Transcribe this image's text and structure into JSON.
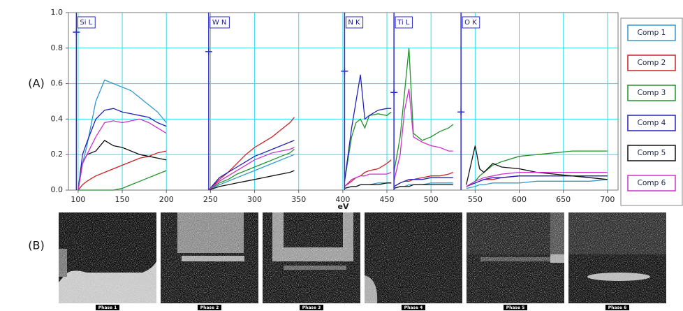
{
  "chart_data": {
    "type": "line",
    "x_label": "eV",
    "xlim": [
      89,
      712
    ],
    "ylim": [
      0,
      1
    ],
    "xticks": [
      100,
      150,
      200,
      250,
      300,
      350,
      400,
      450,
      500,
      550,
      600,
      650,
      700
    ],
    "yticks": [
      {
        "value": 0,
        "label": "0.0"
      },
      0.2,
      0.4,
      0.6,
      0.8,
      {
        "value": 1,
        "label": "1.0"
      }
    ],
    "grid": true,
    "grid_color": "#30e0e8",
    "legend": "right",
    "edges": [
      {
        "label": "Si L",
        "x": 98,
        "marker": 0.89
      },
      {
        "label": "W N",
        "x": 248,
        "marker": 0.78
      },
      {
        "label": "N K",
        "x": 402,
        "marker": 0.67
      },
      {
        "label": "Ti L",
        "x": 458,
        "marker": 0.55
      },
      {
        "label": "O K",
        "x": 534,
        "marker": 0.44
      }
    ],
    "edge_color": "#2a2ad0",
    "x": [
      100,
      105,
      110,
      120,
      130,
      140,
      150,
      160,
      170,
      180,
      190,
      200,
      null,
      248,
      260,
      270,
      280,
      290,
      300,
      310,
      320,
      330,
      340,
      345,
      null,
      402,
      410,
      415,
      420,
      425,
      430,
      440,
      450,
      455,
      null,
      458,
      465,
      470,
      475,
      480,
      490,
      500,
      510,
      520,
      525,
      null,
      540,
      550,
      555,
      560,
      570,
      580,
      600,
      620,
      640,
      660,
      680,
      700
    ],
    "series": [
      {
        "name": "Comp 1",
        "color": "#3399cc",
        "values": [
          0.02,
          0.15,
          0.25,
          0.5,
          0.62,
          0.6,
          0.58,
          0.56,
          0.52,
          0.48,
          0.44,
          0.38,
          null,
          0,
          0.03,
          0.05,
          0.07,
          0.09,
          0.11,
          0.13,
          0.15,
          0.17,
          0.19,
          0.2,
          null,
          0.01,
          0.02,
          0.02,
          0.03,
          0.03,
          0.03,
          0.04,
          0.04,
          0.04,
          null,
          0.01,
          0.02,
          0.02,
          0.03,
          0.03,
          0.03,
          0.04,
          0.04,
          0.04,
          0.04,
          null,
          0.01,
          0.02,
          0.03,
          0.03,
          0.04,
          0.04,
          0.04,
          0.05,
          0.05,
          0.05,
          0.05,
          0.06
        ]
      },
      {
        "name": "Comp 2",
        "color": "#cc2222",
        "values": [
          0,
          0.03,
          0.05,
          0.08,
          0.1,
          0.12,
          0.14,
          0.16,
          0.18,
          0.19,
          0.21,
          0.22,
          null,
          0,
          0.06,
          0.1,
          0.15,
          0.2,
          0.24,
          0.27,
          0.3,
          0.34,
          0.38,
          0.41,
          null,
          0.02,
          0.05,
          0.07,
          0.08,
          0.1,
          0.11,
          0.12,
          0.15,
          0.17,
          null,
          0.02,
          0.04,
          0.05,
          0.05,
          0.06,
          0.07,
          0.08,
          0.08,
          0.09,
          0.1,
          null,
          0.02,
          0.04,
          0.05,
          0.06,
          0.06,
          0.07,
          0.08,
          0.08,
          0.08,
          0.08,
          0.08,
          0.08
        ]
      },
      {
        "name": "Comp 3",
        "color": "#22922a",
        "values": [
          0,
          0,
          0,
          0,
          0,
          0,
          0.01,
          0.03,
          0.05,
          0.07,
          0.09,
          0.11,
          null,
          0,
          0.04,
          0.06,
          0.09,
          0.11,
          0.13,
          0.15,
          0.17,
          0.19,
          0.21,
          0.23,
          null,
          0.05,
          0.3,
          0.38,
          0.4,
          0.35,
          0.42,
          0.43,
          0.42,
          0.44,
          null,
          0.1,
          0.3,
          0.55,
          0.8,
          0.32,
          0.28,
          0.3,
          0.33,
          0.35,
          0.37,
          null,
          0.02,
          0.05,
          0.08,
          0.1,
          0.14,
          0.16,
          0.19,
          0.2,
          0.21,
          0.22,
          0.22,
          0.22
        ]
      },
      {
        "name": "Comp 4",
        "color": "#2222bb",
        "values": [
          0,
          0.2,
          0.27,
          0.4,
          0.45,
          0.46,
          0.44,
          0.43,
          0.42,
          0.41,
          0.38,
          0.36,
          null,
          0,
          0.07,
          0.1,
          0.13,
          0.16,
          0.19,
          0.21,
          0.23,
          0.25,
          0.27,
          0.28,
          null,
          0.05,
          0.35,
          0.5,
          0.65,
          0.4,
          0.42,
          0.45,
          0.46,
          0.46,
          null,
          0.02,
          0.04,
          0.05,
          0.06,
          0.06,
          0.06,
          0.07,
          0.07,
          0.07,
          0.07,
          null,
          0.02,
          0.04,
          0.05,
          0.06,
          0.07,
          0.07,
          0.08,
          0.08,
          0.08,
          0.08,
          0.08,
          0.08
        ]
      },
      {
        "name": "Comp 5",
        "color": "#111111",
        "values": [
          0,
          0.15,
          0.2,
          0.22,
          0.28,
          0.25,
          0.24,
          0.22,
          0.2,
          0.19,
          0.18,
          0.17,
          null,
          0,
          0.02,
          0.03,
          0.04,
          0.05,
          0.06,
          0.07,
          0.08,
          0.09,
          0.1,
          0.11,
          null,
          0.01,
          0.02,
          0.02,
          0.03,
          0.03,
          0.03,
          0.03,
          0.04,
          0.04,
          null,
          0.01,
          0.02,
          0.02,
          0.02,
          0.03,
          0.03,
          0.03,
          0.03,
          0.03,
          0.03,
          null,
          0.03,
          0.25,
          0.12,
          0.1,
          0.15,
          0.13,
          0.12,
          0.1,
          0.09,
          0.08,
          0.07,
          0.06
        ]
      },
      {
        "name": "Comp 6",
        "color": "#cc33cc",
        "values": [
          0,
          0.15,
          0.2,
          0.3,
          0.38,
          0.39,
          0.38,
          0.39,
          0.4,
          0.38,
          0.35,
          0.32,
          null,
          0,
          0.05,
          0.08,
          0.11,
          0.14,
          0.17,
          0.19,
          0.21,
          0.22,
          0.23,
          0.24,
          null,
          0.02,
          0.06,
          0.07,
          0.08,
          0.08,
          0.09,
          0.09,
          0.09,
          0.1,
          null,
          0.05,
          0.2,
          0.45,
          0.57,
          0.3,
          0.27,
          0.25,
          0.24,
          0.22,
          0.22,
          null,
          0.02,
          0.05,
          0.06,
          0.07,
          0.08,
          0.09,
          0.1,
          0.1,
          0.1,
          0.1,
          0.1,
          0.1
        ]
      }
    ]
  },
  "panel_labels": [
    "(A)",
    "(B)"
  ],
  "images": [
    "Phase 1",
    "Phase 2",
    "Phase 3",
    "Phase 4",
    "Phase 5",
    "Phase 6"
  ]
}
